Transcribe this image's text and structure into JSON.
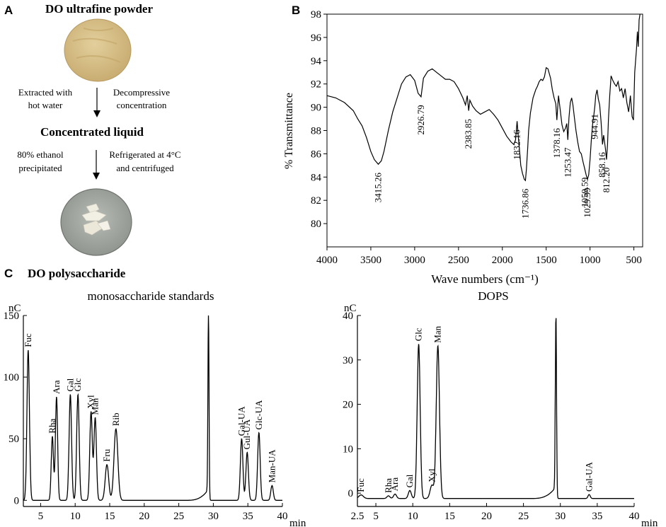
{
  "panelA": {
    "label": "A",
    "title": "DO ultrafine powder",
    "step1_left": [
      "Extracted with",
      "hot water"
    ],
    "step1_right": [
      "Decompressive",
      "concentration"
    ],
    "intermediate": "Concentrated liquid",
    "step2_left": [
      "80% ethanol",
      "precipitated"
    ],
    "step2_right": [
      "Refrigerated at 4°C",
      "and centrifuged"
    ]
  },
  "panelC": {
    "label": "C",
    "title": "DO polysaccharide"
  },
  "colors": {
    "line": "#000000",
    "powder": "#d9c28a",
    "dish": "#a7aba6",
    "flake": "#f1efe2"
  },
  "chart_data": [
    {
      "id": "ftir",
      "panel": "B",
      "type": "line",
      "title": "",
      "xlabel": "Wave numbers (cm⁻¹)",
      "ylabel": "% Transmittance",
      "xlim": [
        4000,
        400
      ],
      "ylim": [
        78,
        98
      ],
      "xticks": [
        4000,
        3500,
        3000,
        2500,
        2000,
        1500,
        1000,
        500
      ],
      "yticks": [
        80,
        82,
        84,
        86,
        88,
        90,
        92,
        94,
        96,
        98
      ],
      "series": [
        {
          "name": "DOPS",
          "x": [
            4000,
            3900,
            3800,
            3700,
            3650,
            3600,
            3550,
            3500,
            3460,
            3415,
            3380,
            3350,
            3300,
            3250,
            3200,
            3150,
            3100,
            3050,
            3000,
            2960,
            2927,
            2900,
            2850,
            2800,
            2750,
            2700,
            2650,
            2600,
            2550,
            2500,
            2450,
            2420,
            2400,
            2384,
            2370,
            2340,
            2300,
            2250,
            2200,
            2150,
            2100,
            2050,
            2000,
            1950,
            1900,
            1870,
            1850,
            1832,
            1815,
            1800,
            1790,
            1770,
            1750,
            1737,
            1725,
            1710,
            1700,
            1680,
            1650,
            1620,
            1600,
            1580,
            1560,
            1540,
            1520,
            1500,
            1480,
            1450,
            1430,
            1410,
            1390,
            1378,
            1360,
            1340,
            1320,
            1300,
            1280,
            1265,
            1253,
            1240,
            1225,
            1210,
            1195,
            1180,
            1160,
            1140,
            1120,
            1100,
            1080,
            1060,
            1045,
            1030,
            1015,
            1000,
            985,
            970,
            955,
            945,
            935,
            920,
            905,
            890,
            875,
            858,
            845,
            825,
            812,
            800,
            790,
            775,
            760,
            740,
            720,
            700,
            680,
            660,
            640,
            620,
            600,
            580,
            560,
            540,
            520,
            505,
            490,
            470,
            460,
            450,
            440,
            430
          ],
          "y": [
            91,
            90.8,
            90.4,
            89.7,
            89,
            88.4,
            87.4,
            86.2,
            85.5,
            85.1,
            85.4,
            86.2,
            88,
            89.6,
            90.8,
            92,
            92.6,
            92.8,
            92.3,
            91.2,
            90.9,
            92.5,
            93.1,
            93.3,
            93,
            92.7,
            92.4,
            92.4,
            92.2,
            91.6,
            90.8,
            90.2,
            91,
            89.7,
            90.6,
            90.1,
            89.7,
            89.4,
            89.6,
            89.8,
            89.4,
            88.9,
            88.2,
            87.5,
            87,
            86.8,
            87.2,
            88.8,
            87.2,
            85.9,
            85,
            84.3,
            83.8,
            83.7,
            84.7,
            86.6,
            88,
            89.5,
            90.8,
            91.5,
            91.8,
            92.2,
            92.4,
            92.3,
            92.6,
            93.4,
            93.3,
            92.5,
            91.5,
            90.8,
            90.3,
            88.9,
            91,
            89.8,
            88.5,
            87.9,
            88.2,
            88.6,
            87.2,
            89.1,
            90.4,
            90.8,
            90.2,
            89.2,
            88,
            87,
            86.2,
            86,
            85.3,
            84.7,
            84.2,
            83.8,
            84.2,
            85.5,
            87.2,
            88.6,
            89.4,
            90.1,
            91,
            91.5,
            90.7,
            90.2,
            88.8,
            86.8,
            87.6,
            86.5,
            85.5,
            86.8,
            89,
            91,
            92.7,
            92.3,
            92,
            91.8,
            92.2,
            91.4,
            91.6,
            90.8,
            91.6,
            90.4,
            89.6,
            91,
            89.2,
            88.9,
            93,
            95,
            96.5,
            95.2,
            97.5,
            98
          ]
        }
      ],
      "annotations": [
        {
          "label": "3415.26",
          "x": 3415.26
        },
        {
          "label": "2926.79",
          "x": 2926.79
        },
        {
          "label": "2383.85",
          "x": 2383.85
        },
        {
          "label": "1832.16",
          "x": 1832.16
        },
        {
          "label": "1736.86",
          "x": 1736.86
        },
        {
          "label": "1378.16",
          "x": 1378.16
        },
        {
          "label": "1253.47",
          "x": 1253.47
        },
        {
          "label": "1059.59",
          "x": 1059.59
        },
        {
          "label": "1029.99",
          "x": 1029.99
        },
        {
          "label": "944.91",
          "x": 944.91
        },
        {
          "label": "858.16",
          "x": 858.16
        },
        {
          "label": "812.20",
          "x": 812.2
        }
      ]
    },
    {
      "id": "standards",
      "panel": "C",
      "type": "line",
      "title": "monosaccharide standards",
      "xlabel": "min",
      "ylabel": "nC",
      "xlim": [
        2.5,
        40
      ],
      "ylim": [
        -5,
        150
      ],
      "xticks": [
        5,
        10,
        15,
        20,
        25,
        30,
        35,
        40
      ],
      "yticks": [
        0,
        50,
        100,
        150
      ],
      "baseline": 0,
      "peaks": [
        {
          "label": "Fuc",
          "t": 3.2,
          "h": 122,
          "w": 0.18
        },
        {
          "label": "Rha",
          "t": 6.7,
          "h": 52,
          "w": 0.16
        },
        {
          "label": "Ara",
          "t": 7.3,
          "h": 84,
          "w": 0.16
        },
        {
          "label": "Gal",
          "t": 9.3,
          "h": 86,
          "w": 0.18
        },
        {
          "label": "Glc",
          "t": 10.4,
          "h": 86,
          "w": 0.18
        },
        {
          "label": "Xyl",
          "t": 12.3,
          "h": 72,
          "w": 0.18
        },
        {
          "label": "Man",
          "t": 12.9,
          "h": 67,
          "w": 0.18
        },
        {
          "label": "Fru",
          "t": 14.6,
          "h": 29,
          "w": 0.25
        },
        {
          "label": "Rib",
          "t": 15.9,
          "h": 58,
          "w": 0.28
        },
        {
          "label": "",
          "t": 29.3,
          "h": 150,
          "w": 0.08
        },
        {
          "label": "Gal-UA",
          "t": 34.1,
          "h": 50,
          "w": 0.18
        },
        {
          "label": "Gul-UA",
          "t": 34.9,
          "h": 39,
          "w": 0.18
        },
        {
          "label": "Glc-UA",
          "t": 36.6,
          "h": 55,
          "w": 0.18
        },
        {
          "label": "Man-UA",
          "t": 38.5,
          "h": 12,
          "w": 0.18
        }
      ]
    },
    {
      "id": "dops",
      "panel": "C",
      "type": "line",
      "title": "DOPS",
      "xlabel": "min",
      "ylabel": "nC",
      "xlim": [
        2.5,
        40
      ],
      "ylim": [
        -3,
        40
      ],
      "xticks": [
        2.5,
        5,
        10,
        15,
        20,
        25,
        30,
        35,
        40
      ],
      "yticks": [
        0,
        10,
        20,
        30,
        40
      ],
      "baseline": -1.2,
      "peaks": [
        {
          "label": "Fuc",
          "t": 3.0,
          "h": 0.8,
          "w": 0.3
        },
        {
          "label": "Rha",
          "t": 6.7,
          "h": 0.6,
          "w": 0.2
        },
        {
          "label": "Ara",
          "t": 7.6,
          "h": 1.0,
          "w": 0.2
        },
        {
          "label": "Gal",
          "t": 9.6,
          "h": 1.8,
          "w": 0.2
        },
        {
          "label": "Glc",
          "t": 10.8,
          "h": 34.8,
          "w": 0.2
        },
        {
          "label": "Xyl",
          "t": 12.6,
          "h": 3.0,
          "w": 0.25
        },
        {
          "label": "Man",
          "t": 13.4,
          "h": 34.4,
          "w": 0.22
        },
        {
          "label": "",
          "t": 29.4,
          "h": 41.5,
          "w": 0.08
        },
        {
          "label": "Gal-UA",
          "t": 33.9,
          "h": 0.9,
          "w": 0.15
        }
      ]
    }
  ]
}
